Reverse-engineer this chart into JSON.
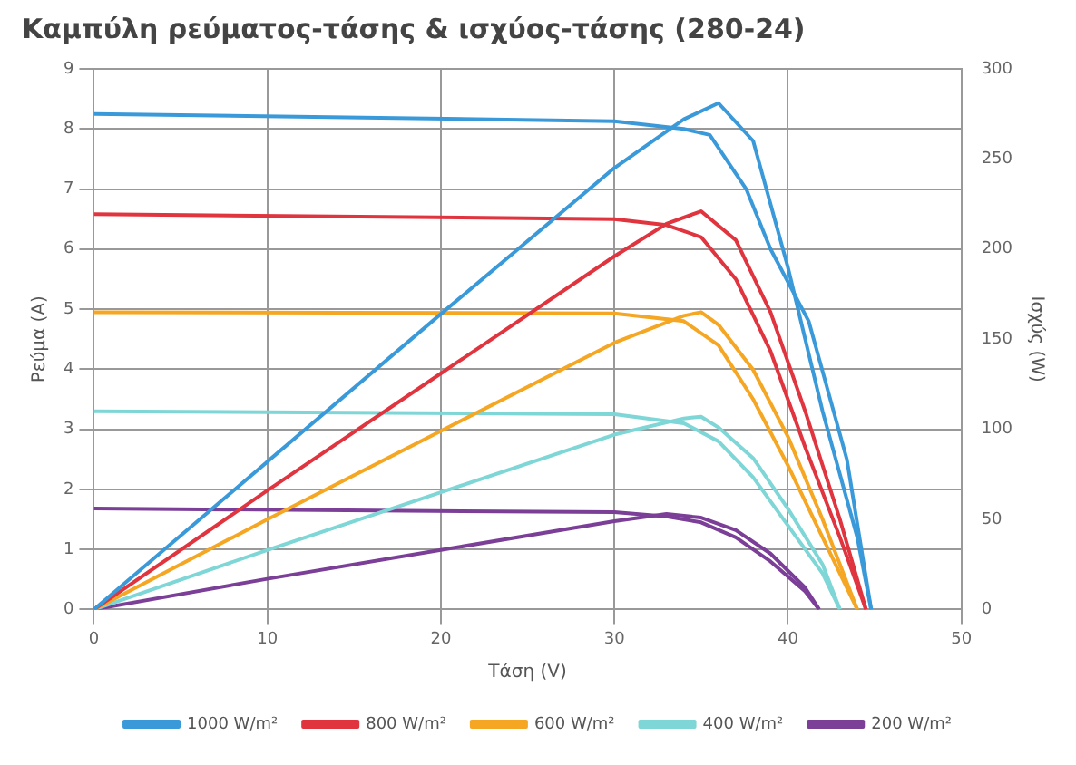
{
  "chart_data": {
    "type": "line",
    "title": "Καμπύλη ρεύματος-τάσης & ισχύος-τάσης (280-24)",
    "xlabel": "Τάση (V)",
    "ylabel": "Ρεύμα (A)",
    "y2label": "Ισχύς (W)",
    "xlim": [
      0,
      50
    ],
    "xticks": [
      0,
      10,
      20,
      30,
      40,
      50
    ],
    "ylim": [
      0,
      9
    ],
    "yticks": [
      0,
      1,
      2,
      3,
      4,
      5,
      6,
      7,
      8,
      9
    ],
    "y2lim": [
      0,
      300
    ],
    "y2ticks": [
      0,
      50,
      100,
      150,
      200,
      250,
      300
    ],
    "grid": true,
    "legend": "bottom",
    "marker": "none",
    "line_style": "solid",
    "series": [
      {
        "name": "1000 W/m²",
        "color": "#3a9ad9",
        "x": [
          0,
          30,
          34,
          35.5,
          37.6,
          39,
          41.2,
          43.4,
          44.8
        ],
        "values": [
          8.25,
          8.13,
          8.0,
          7.9,
          7.0,
          6.0,
          4.8,
          2.5,
          0
        ]
      },
      {
        "color": "#3a9ad9",
        "axis": "y2",
        "x": [
          0,
          10,
          20,
          30,
          34,
          36,
          38,
          40,
          42,
          44,
          44.8
        ],
        "values": [
          0,
          82,
          164,
          245,
          272,
          281,
          260,
          190,
          110,
          40,
          0
        ]
      },
      {
        "name": "800 W/m²",
        "color": "#e0343f",
        "x": [
          0,
          30,
          33,
          35,
          37,
          39,
          41,
          43,
          44.5
        ],
        "values": [
          6.58,
          6.5,
          6.4,
          6.2,
          5.5,
          4.3,
          2.7,
          1.2,
          0
        ]
      },
      {
        "color": "#e0343f",
        "axis": "y2",
        "x": [
          0,
          10,
          20,
          30,
          33,
          35,
          37,
          39,
          41,
          43,
          44.5
        ],
        "values": [
          0,
          66,
          131,
          196,
          214,
          221,
          205,
          165,
          110,
          50,
          0
        ]
      },
      {
        "name": "600 W/m²",
        "color": "#f5a623",
        "x": [
          0,
          30,
          34,
          36,
          38,
          40,
          42,
          44
        ],
        "values": [
          4.95,
          4.93,
          4.8,
          4.4,
          3.5,
          2.4,
          1.2,
          0
        ]
      },
      {
        "color": "#f5a623",
        "axis": "y2",
        "x": [
          0,
          10,
          20,
          30,
          34,
          35,
          36,
          38,
          40,
          42,
          44
        ],
        "values": [
          0,
          50,
          99,
          148,
          163,
          165,
          158,
          133,
          96,
          50,
          0
        ]
      },
      {
        "name": "400 W/m²",
        "color": "#7fd6d6",
        "x": [
          0,
          30,
          34,
          36,
          38,
          40,
          42,
          43
        ],
        "values": [
          3.3,
          3.25,
          3.1,
          2.8,
          2.2,
          1.4,
          0.6,
          0
        ]
      },
      {
        "color": "#7fd6d6",
        "axis": "y2",
        "x": [
          0,
          10,
          20,
          30,
          34,
          35,
          36,
          38,
          40,
          42,
          43
        ],
        "values": [
          0,
          33,
          65,
          97,
          106,
          107,
          101,
          84,
          56,
          25,
          0
        ]
      },
      {
        "name": "200 W/m²",
        "color": "#7b3f98",
        "x": [
          0,
          30,
          33,
          35,
          37,
          39,
          41,
          41.8
        ],
        "values": [
          1.68,
          1.62,
          1.55,
          1.45,
          1.2,
          0.8,
          0.3,
          0
        ]
      },
      {
        "color": "#7b3f98",
        "axis": "y2",
        "x": [
          0,
          10,
          20,
          30,
          33,
          35,
          37,
          39,
          41,
          41.8
        ],
        "values": [
          0,
          17,
          33,
          49,
          53,
          51,
          44,
          31,
          12,
          0
        ]
      }
    ]
  }
}
